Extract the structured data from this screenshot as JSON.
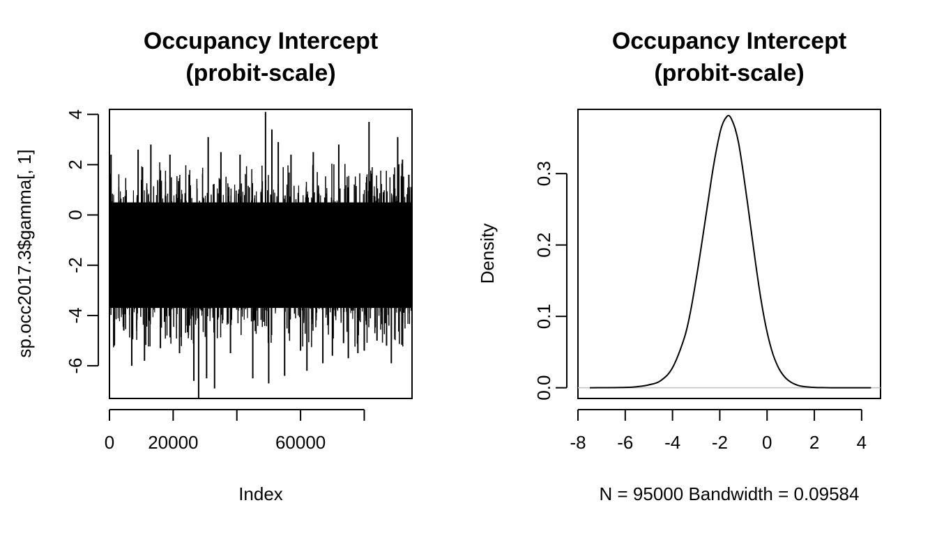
{
  "chart_data": [
    {
      "type": "line",
      "title": "Occupancy Intercept\n(probit-scale)",
      "xlabel": "Index",
      "ylabel": "sp.occ2017.3$gamma[, 1]",
      "xlim": [
        0,
        95000
      ],
      "ylim": [
        -7.3,
        4.2
      ],
      "x_ticks": [
        0,
        20000,
        40000,
        60000,
        80000
      ],
      "x_tick_labels": [
        "0",
        "20000",
        "",
        "60000",
        ""
      ],
      "y_ticks": [
        -6,
        -4,
        -2,
        0,
        2,
        4
      ],
      "y_tick_labels": [
        "-6",
        "-4",
        "-2",
        "0",
        "2",
        "4"
      ],
      "series": [
        {
          "n_draws": 95000,
          "color": "#000000",
          "dense_band": [
            -3.7,
            0.5
          ],
          "spikes": [
            {
              "x": 500,
              "y": 2.4
            },
            {
              "x": 1500,
              "y": -5.2
            },
            {
              "x": 4500,
              "y": -4.6
            },
            {
              "x": 7000,
              "y": -6.0
            },
            {
              "x": 9000,
              "y": 2.6
            },
            {
              "x": 11000,
              "y": -5.8
            },
            {
              "x": 13000,
              "y": 2.8
            },
            {
              "x": 16000,
              "y": -5.3
            },
            {
              "x": 19000,
              "y": 2.4
            },
            {
              "x": 22000,
              "y": -5.5
            },
            {
              "x": 25000,
              "y": 1.6
            },
            {
              "x": 26500,
              "y": -6.6
            },
            {
              "x": 28000,
              "y": -7.3
            },
            {
              "x": 30500,
              "y": -6.5
            },
            {
              "x": 31000,
              "y": 3.1
            },
            {
              "x": 33000,
              "y": -6.9
            },
            {
              "x": 35000,
              "y": 2.5
            },
            {
              "x": 38000,
              "y": -5.5
            },
            {
              "x": 41000,
              "y": 2.4
            },
            {
              "x": 45000,
              "y": -6.5
            },
            {
              "x": 49000,
              "y": 4.1
            },
            {
              "x": 50000,
              "y": -6.7
            },
            {
              "x": 51000,
              "y": 3.4
            },
            {
              "x": 53000,
              "y": 2.9
            },
            {
              "x": 55000,
              "y": -6.4
            },
            {
              "x": 57000,
              "y": 2.4
            },
            {
              "x": 60000,
              "y": -5.4
            },
            {
              "x": 62000,
              "y": -6.2
            },
            {
              "x": 64000,
              "y": 2.5
            },
            {
              "x": 67000,
              "y": -5.9
            },
            {
              "x": 70000,
              "y": -5.6
            },
            {
              "x": 72000,
              "y": 2.8
            },
            {
              "x": 73500,
              "y": -5.1
            },
            {
              "x": 75000,
              "y": -5.7
            },
            {
              "x": 78000,
              "y": -5.5
            },
            {
              "x": 80000,
              "y": -5.4
            },
            {
              "x": 81500,
              "y": 3.7
            },
            {
              "x": 84000,
              "y": -5.0
            },
            {
              "x": 87000,
              "y": -5.2
            },
            {
              "x": 88500,
              "y": -5.9
            },
            {
              "x": 90500,
              "y": 3.1
            },
            {
              "x": 92000,
              "y": 2.2
            },
            {
              "x": 94000,
              "y": 1.6
            }
          ]
        }
      ]
    },
    {
      "type": "line",
      "title": "Occupancy Intercept\n(probit-scale)",
      "xlabel": "N = 95000   Bandwidth = 0.09584",
      "ylabel": "Density",
      "xlim": [
        -8.0,
        4.8
      ],
      "ylim": [
        -0.015,
        0.39
      ],
      "x_ticks": [
        -8,
        -6,
        -4,
        -2,
        0,
        2,
        4
      ],
      "x_tick_labels": [
        "-8",
        "-6",
        "-4",
        "-2",
        "0",
        "2",
        "4"
      ],
      "y_ticks": [
        0.0,
        0.1,
        0.2,
        0.3
      ],
      "y_tick_labels": [
        "0.0",
        "0.1",
        "0.2",
        "0.3"
      ],
      "baseline": 0,
      "baseline_color": "#bebebe",
      "series": [
        {
          "color": "#000000",
          "x": [
            -7.5,
            -6.0,
            -5.5,
            -5.0,
            -4.5,
            -4.0,
            -3.5,
            -3.25,
            -3.0,
            -2.75,
            -2.5,
            -2.25,
            -2.0,
            -1.85,
            -1.7,
            -1.6,
            -1.5,
            -1.35,
            -1.2,
            -1.0,
            -0.75,
            -0.5,
            -0.25,
            0.0,
            0.25,
            0.5,
            0.75,
            1.0,
            1.25,
            1.5,
            2.0,
            2.5,
            3.0,
            4.4
          ],
          "y": [
            0.0,
            0.0005,
            0.0015,
            0.004,
            0.01,
            0.028,
            0.07,
            0.105,
            0.152,
            0.205,
            0.26,
            0.314,
            0.356,
            0.372,
            0.38,
            0.381,
            0.376,
            0.363,
            0.342,
            0.3,
            0.24,
            0.178,
            0.122,
            0.078,
            0.047,
            0.027,
            0.015,
            0.008,
            0.004,
            0.002,
            0.0005,
            0.0001,
            0.0,
            0.0
          ]
        }
      ]
    }
  ]
}
